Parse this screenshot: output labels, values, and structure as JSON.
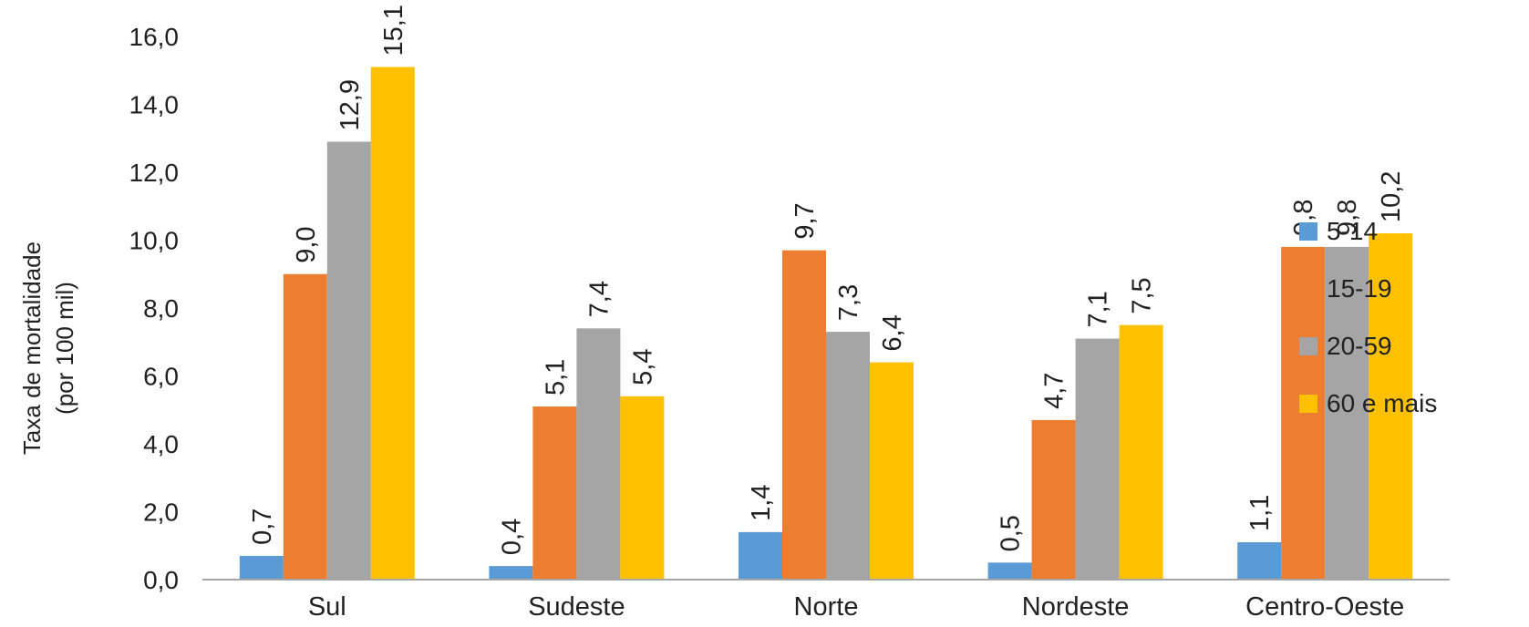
{
  "chart_data": {
    "type": "bar",
    "ylabel_line1": "Taxa de mortalidade",
    "ylabel_line2": "(por 100 mil)",
    "ylim": [
      0,
      16
    ],
    "yticks": [
      "0,0",
      "2,0",
      "4,0",
      "6,0",
      "8,0",
      "10,0",
      "12,0",
      "14,0",
      "16,0"
    ],
    "grid": false,
    "legend_position": "right",
    "categories": [
      "Sul",
      "Sudeste",
      "Norte",
      "Nordeste",
      "Centro-Oeste"
    ],
    "series": [
      {
        "name": "5-14",
        "color": "#5B9BD5",
        "values": [
          0.7,
          0.4,
          1.4,
          0.5,
          1.1
        ],
        "labels": [
          "0,7",
          "0,4",
          "1,4",
          "0,5",
          "1,1"
        ]
      },
      {
        "name": "15-19",
        "color": "#ED7D31",
        "values": [
          9.0,
          5.1,
          9.7,
          4.7,
          9.8
        ],
        "labels": [
          "9,0",
          "5,1",
          "9,7",
          "4,7",
          "9,8"
        ]
      },
      {
        "name": "20-59",
        "color": "#A5A5A5",
        "values": [
          12.9,
          7.4,
          7.3,
          7.1,
          9.8
        ],
        "labels": [
          "12,9",
          "7,4",
          "7,3",
          "7,1",
          "9,8"
        ]
      },
      {
        "name": "60 e mais",
        "color": "#FFC000",
        "values": [
          15.1,
          5.4,
          6.4,
          7.5,
          10.2
        ],
        "labels": [
          "15,1",
          "5,4",
          "6,4",
          "7,5",
          "10,2"
        ]
      }
    ]
  }
}
